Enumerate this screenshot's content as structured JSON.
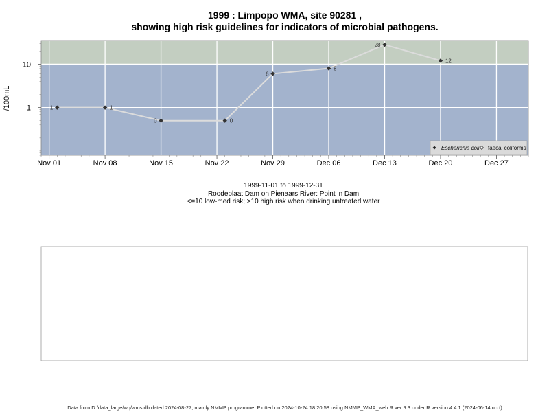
{
  "chart_data": {
    "type": "line",
    "title_line1": "1999 : Limpopo WMA, site 90281 ,",
    "title_line2": "showing high risk guidelines for indicators of microbial pathogens.",
    "ylabel": "/100mL",
    "yscale": "log",
    "ylim": [
      0.08,
      35
    ],
    "y_ticks": [
      1,
      10
    ],
    "y_tick_labels": [
      "1",
      "10"
    ],
    "xlim": [
      "1999-10-31",
      "1999-12-31"
    ],
    "x_ticks": [
      "1999-11-01",
      "1999-11-08",
      "1999-11-15",
      "1999-11-22",
      "1999-11-29",
      "1999-12-06",
      "1999-12-13",
      "1999-12-20",
      "1999-12-27"
    ],
    "x_tick_labels": [
      "Nov 01",
      "Nov 08",
      "Nov 15",
      "Nov 22",
      "Nov 29",
      "Dec 06",
      "Dec 13",
      "Dec 20",
      "Dec 27"
    ],
    "threshold": 10,
    "zones": [
      {
        "range": "below-threshold",
        "color": "#a3b3cd"
      },
      {
        "range": "above-threshold",
        "color": "#c3cec1"
      }
    ],
    "grid": true,
    "series": [
      {
        "name": "Escherichia coli",
        "x": [
          "1999-11-02",
          "1999-11-08",
          "1999-11-15",
          "1999-11-23",
          "1999-11-29",
          "1999-12-06",
          "1999-12-13",
          "1999-12-20"
        ],
        "y": [
          1,
          1,
          0.5,
          0.5,
          6,
          8,
          28,
          12
        ],
        "labels": [
          "1",
          "1",
          "0",
          "0",
          "6",
          "8",
          "28",
          "12"
        ],
        "line_color": "#dcdcdc",
        "marker_color": "#333333"
      }
    ],
    "legend": {
      "position": "bottom-right",
      "entries": [
        {
          "label": "Escherichia coli",
          "marker": "filled-diamond",
          "italic": true
        },
        {
          "label": "faecal coliforms",
          "marker": "open-diamond",
          "italic": false
        }
      ]
    },
    "subtitle_lines": [
      "1999-11-01 to 1999-12-31",
      "Roodeplaat Dam on Pienaars River: Point in Dam",
      "<=10 low-med risk; >10 high risk when drinking untreated water"
    ],
    "footer": "Data from D:/data_large/wq/wms.db dated 2024-08-27, mainly NMMP programme. Plotted on 2024-10-24 18:20:58 using NMMP_WMA_web.R ver 9.3 under R version 4.4.1 (2024-06-14 ucrt)"
  }
}
